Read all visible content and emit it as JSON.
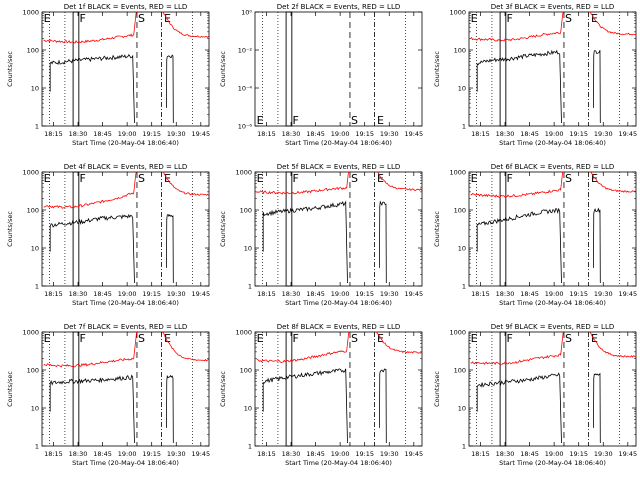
{
  "figure": {
    "legend_note": "BLACK = Events, RED = LLD",
    "x_axis_title": "Start Time (20-May-04 18:06:40)",
    "y_axis_title": "Counts/sec",
    "x_tick_labels": [
      "18:15",
      "18:30",
      "18:45",
      "19:00",
      "19:15",
      "19:30",
      "19:45"
    ],
    "y_tick_labels_default": [
      "1",
      "10",
      "100",
      "1000"
    ],
    "y_tick_labels_empty": [
      "10⁰",
      "10⁻²",
      "10⁻⁴",
      "10⁻⁶"
    ],
    "markers": [
      "E",
      "F",
      "S",
      "E"
    ]
  },
  "colors": {
    "events": "#000000",
    "lld": "#ff0000",
    "axes": "#000000",
    "background": "#ffffff"
  },
  "chart_data": [
    {
      "type": "line",
      "title": "Det 1f BLACK = Events, RED = LLD",
      "xlabel": "Start Time (20-May-04 18:06:40)",
      "ylabel": "Counts/sec",
      "yscale": "log",
      "ylim": [
        1,
        1000
      ],
      "xlim": [
        "18:08",
        "19:50"
      ],
      "series": [
        {
          "name": "Events",
          "color": "#000000",
          "values_approx": [
            45,
            50,
            55,
            60,
            65,
            70
          ]
        },
        {
          "name": "LLD",
          "color": "#ff0000",
          "values_approx": [
            180,
            170,
            160,
            170,
            190,
            220,
            250
          ]
        }
      ],
      "markers": [
        "E",
        "F",
        "S",
        "E"
      ],
      "has_data": true
    },
    {
      "type": "line",
      "title": "Det 2f BLACK = Events, RED = LLD",
      "xlabel": "Start Time (20-May-04 18:06:40)",
      "ylabel": "Counts/sec",
      "yscale": "log",
      "ylim": [
        1e-06,
        1
      ],
      "xlim": [
        "18:08",
        "19:50"
      ],
      "series": [],
      "markers": [
        "E",
        "F",
        "S",
        "E"
      ],
      "has_data": false
    },
    {
      "type": "line",
      "title": "Det 3f BLACK = Events, RED = LLD",
      "xlabel": "Start Time (20-May-04 18:06:40)",
      "ylabel": "Counts/sec",
      "yscale": "log",
      "ylim": [
        1,
        1000
      ],
      "xlim": [
        "18:08",
        "19:50"
      ],
      "series": [
        {
          "name": "Events",
          "color": "#000000",
          "values_approx": [
            45,
            55,
            60,
            70,
            80,
            90
          ]
        },
        {
          "name": "LLD",
          "color": "#ff0000",
          "values_approx": [
            200,
            190,
            180,
            190,
            220,
            260,
            290
          ]
        }
      ],
      "markers": [
        "E",
        "F",
        "S",
        "E"
      ],
      "has_data": true
    },
    {
      "type": "line",
      "title": "Det 4f BLACK = Events, RED = LLD",
      "xlabel": "Start Time (20-May-04 18:06:40)",
      "ylabel": "Counts/sec",
      "yscale": "log",
      "ylim": [
        1,
        1000
      ],
      "xlim": [
        "18:08",
        "19:50"
      ],
      "series": [
        {
          "name": "Events",
          "color": "#000000",
          "values_approx": [
            40,
            45,
            50,
            60,
            65,
            70
          ]
        },
        {
          "name": "LLD",
          "color": "#ff0000",
          "values_approx": [
            130,
            120,
            120,
            140,
            170,
            210,
            280
          ]
        }
      ],
      "markers": [
        "E",
        "F",
        "S",
        "E"
      ],
      "has_data": true
    },
    {
      "type": "line",
      "title": "Det 5f BLACK = Events, RED = LLD",
      "xlabel": "Start Time (20-May-04 18:06:40)",
      "ylabel": "Counts/sec",
      "yscale": "log",
      "ylim": [
        1,
        1000
      ],
      "xlim": [
        "18:08",
        "19:50"
      ],
      "series": [
        {
          "name": "Events",
          "color": "#000000",
          "values_approx": [
            80,
            90,
            100,
            110,
            130,
            150
          ]
        },
        {
          "name": "LLD",
          "color": "#ff0000",
          "values_approx": [
            300,
            290,
            280,
            290,
            320,
            360,
            380
          ]
        }
      ],
      "markers": [
        "E",
        "F",
        "S",
        "E"
      ],
      "has_data": true
    },
    {
      "type": "line",
      "title": "Det 6f BLACK = Events, RED = LLD",
      "xlabel": "Start Time (20-May-04 18:06:40)",
      "ylabel": "Counts/sec",
      "yscale": "log",
      "ylim": [
        1,
        1000
      ],
      "xlim": [
        "18:08",
        "19:50"
      ],
      "series": [
        {
          "name": "Events",
          "color": "#000000",
          "values_approx": [
            40,
            50,
            60,
            75,
            90,
            100
          ]
        },
        {
          "name": "LLD",
          "color": "#ff0000",
          "values_approx": [
            260,
            240,
            230,
            240,
            260,
            300,
            340
          ]
        }
      ],
      "markers": [
        "E",
        "F",
        "S",
        "E"
      ],
      "has_data": true
    },
    {
      "type": "line",
      "title": "Det 7f BLACK = Events, RED = LLD",
      "xlabel": "Start Time (20-May-04 18:06:40)",
      "ylabel": "Counts/sec",
      "yscale": "log",
      "ylim": [
        1,
        1000
      ],
      "xlim": [
        "18:08",
        "19:50"
      ],
      "series": [
        {
          "name": "Events",
          "color": "#000000",
          "values_approx": [
            45,
            50,
            52,
            55,
            60,
            65
          ]
        },
        {
          "name": "LLD",
          "color": "#ff0000",
          "values_approx": [
            140,
            130,
            130,
            140,
            160,
            180,
            200
          ]
        }
      ],
      "markers": [
        "E",
        "F",
        "S",
        "E"
      ],
      "has_data": true
    },
    {
      "type": "line",
      "title": "Det 8f BLACK = Events, RED = LLD",
      "xlabel": "Start Time (20-May-04 18:06:40)",
      "ylabel": "Counts/sec",
      "yscale": "log",
      "ylim": [
        1,
        1000
      ],
      "xlim": [
        "18:08",
        "19:50"
      ],
      "series": [
        {
          "name": "Events",
          "color": "#000000",
          "values_approx": [
            50,
            60,
            70,
            80,
            90,
            100
          ]
        },
        {
          "name": "LLD",
          "color": "#ff0000",
          "values_approx": [
            180,
            170,
            170,
            190,
            230,
            280,
            320
          ]
        }
      ],
      "markers": [
        "E",
        "F",
        "S",
        "E"
      ],
      "has_data": true
    },
    {
      "type": "line",
      "title": "Det 9f BLACK = Events, RED = LLD",
      "xlabel": "Start Time (20-May-04 18:06:40)",
      "ylabel": "Counts/sec",
      "yscale": "log",
      "ylim": [
        1,
        1000
      ],
      "xlim": [
        "18:08",
        "19:50"
      ],
      "series": [
        {
          "name": "Events",
          "color": "#000000",
          "values_approx": [
            40,
            45,
            50,
            55,
            65,
            75
          ]
        },
        {
          "name": "LLD",
          "color": "#ff0000",
          "values_approx": [
            160,
            150,
            150,
            160,
            190,
            220,
            250
          ]
        }
      ],
      "markers": [
        "E",
        "F",
        "S",
        "E"
      ],
      "has_data": true
    }
  ]
}
